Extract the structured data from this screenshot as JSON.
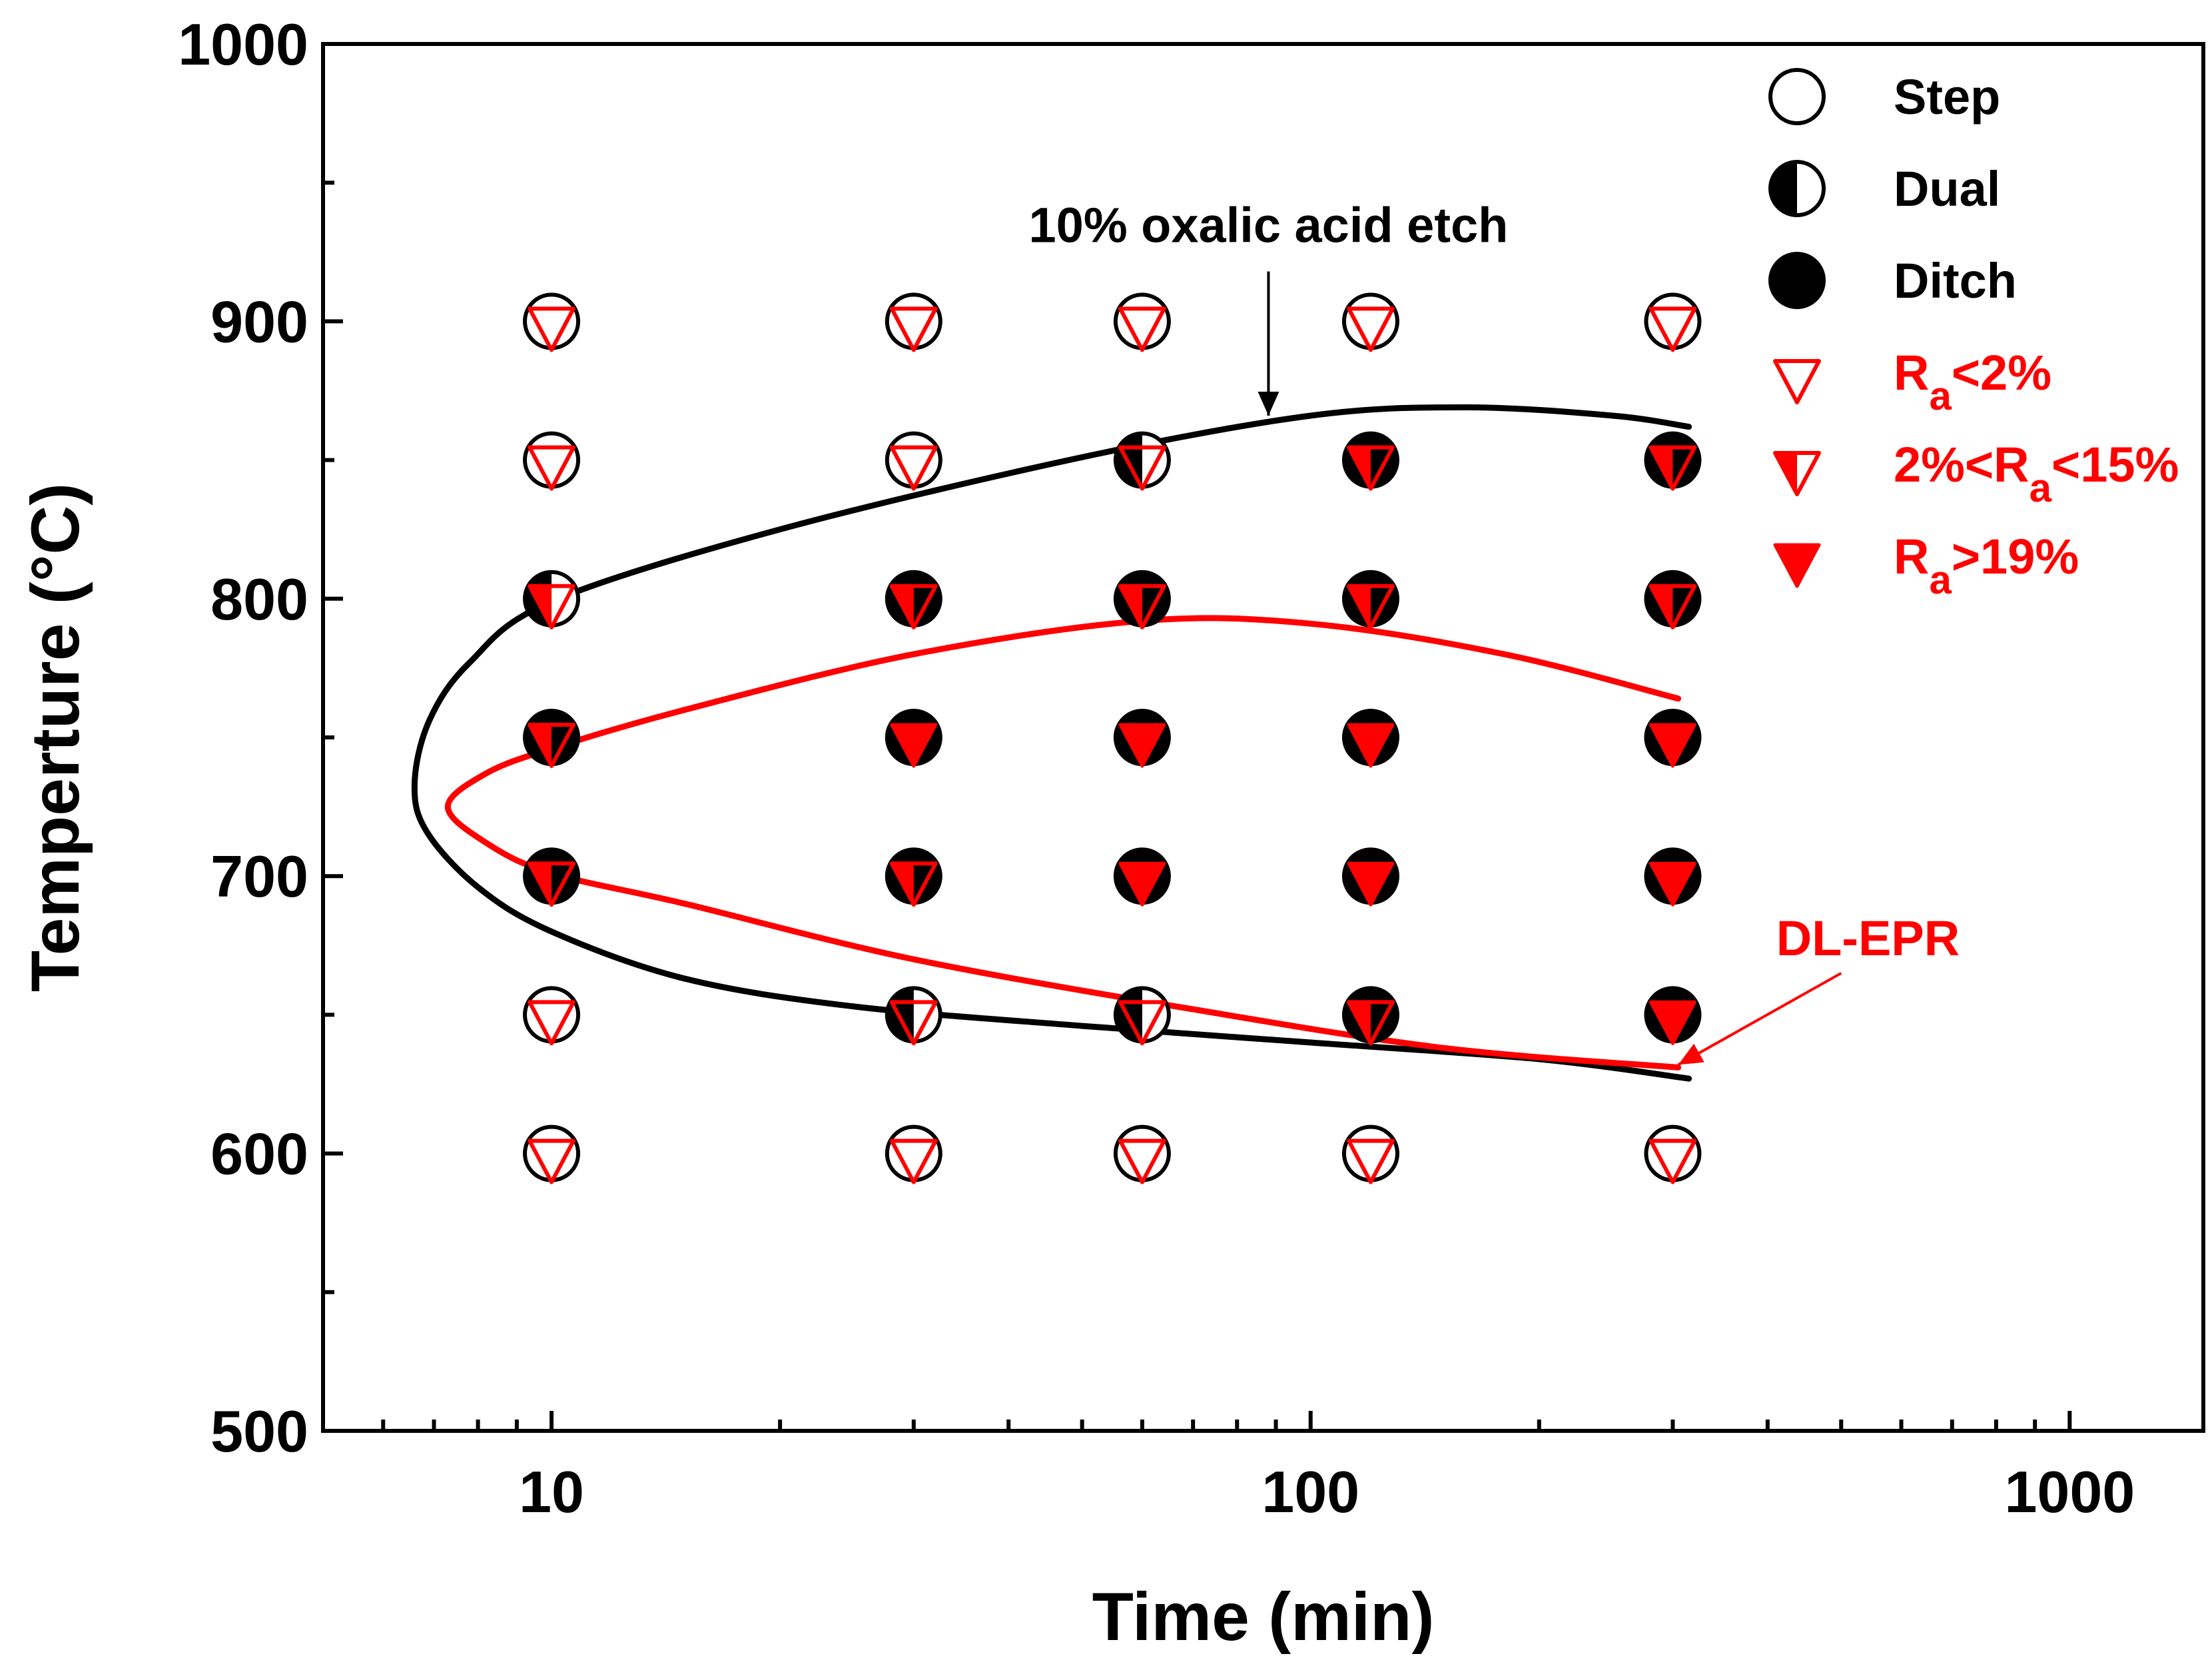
{
  "chart_data": {
    "type": "scatter",
    "xlabel": "Time (min)",
    "ylabel": "Temperture (°C)",
    "xscale": "log",
    "xlim": [
      5,
      1500
    ],
    "ylim": [
      500,
      1000
    ],
    "x_ticks": [
      {
        "value": 10,
        "label": "10"
      },
      {
        "value": 100,
        "label": "100"
      },
      {
        "value": 1000,
        "label": "1000"
      }
    ],
    "y_ticks": [
      {
        "value": 500,
        "label": "500"
      },
      {
        "value": 600,
        "label": "600"
      },
      {
        "value": 700,
        "label": "700"
      },
      {
        "value": 800,
        "label": "800"
      },
      {
        "value": 900,
        "label": "900"
      },
      {
        "value": 1000,
        "label": "1000"
      }
    ],
    "colors": {
      "axis": "#000000",
      "etch": "#000000",
      "epr": "#ff0000"
    },
    "legend": {
      "placement": "top-right",
      "entries": [
        {
          "marker": "circle-open",
          "color": "#000000",
          "text": "Step",
          "sub": "",
          "suffix": ""
        },
        {
          "marker": "circle-half",
          "color": "#000000",
          "text": "Dual",
          "sub": "",
          "suffix": ""
        },
        {
          "marker": "circle-filled",
          "color": "#000000",
          "text": "Ditch",
          "sub": "",
          "suffix": ""
        },
        {
          "marker": "triangle-open",
          "color": "#ff0000",
          "text": "R",
          "sub": "a",
          "suffix": "<2%"
        },
        {
          "marker": "triangle-half",
          "color": "#ff0000",
          "text": "2%<R",
          "sub": "a",
          "suffix": "<15%"
        },
        {
          "marker": "triangle-filled",
          "color": "#ff0000",
          "text": "R",
          "sub": "a",
          "suffix": ">19%"
        }
      ]
    },
    "points": [
      {
        "x": 10,
        "y": 900,
        "etch": "step",
        "epr": "low"
      },
      {
        "x": 10,
        "y": 850,
        "etch": "step",
        "epr": "low"
      },
      {
        "x": 10,
        "y": 800,
        "etch": "dual",
        "epr": "mid"
      },
      {
        "x": 10,
        "y": 750,
        "etch": "ditch",
        "epr": "mid"
      },
      {
        "x": 10,
        "y": 700,
        "etch": "ditch",
        "epr": "mid"
      },
      {
        "x": 10,
        "y": 650,
        "etch": "step",
        "epr": "low"
      },
      {
        "x": 10,
        "y": 600,
        "etch": "step",
        "epr": "low"
      },
      {
        "x": 30,
        "y": 900,
        "etch": "step",
        "epr": "low"
      },
      {
        "x": 30,
        "y": 850,
        "etch": "step",
        "epr": "low"
      },
      {
        "x": 30,
        "y": 800,
        "etch": "ditch",
        "epr": "mid"
      },
      {
        "x": 30,
        "y": 750,
        "etch": "ditch",
        "epr": "high"
      },
      {
        "x": 30,
        "y": 700,
        "etch": "ditch",
        "epr": "mid"
      },
      {
        "x": 30,
        "y": 650,
        "etch": "dual",
        "epr": "low"
      },
      {
        "x": 30,
        "y": 600,
        "etch": "step",
        "epr": "low"
      },
      {
        "x": 60,
        "y": 900,
        "etch": "step",
        "epr": "low"
      },
      {
        "x": 60,
        "y": 850,
        "etch": "dual",
        "epr": "low"
      },
      {
        "x": 60,
        "y": 800,
        "etch": "ditch",
        "epr": "mid"
      },
      {
        "x": 60,
        "y": 750,
        "etch": "ditch",
        "epr": "high"
      },
      {
        "x": 60,
        "y": 700,
        "etch": "ditch",
        "epr": "high"
      },
      {
        "x": 60,
        "y": 650,
        "etch": "dual",
        "epr": "low"
      },
      {
        "x": 60,
        "y": 600,
        "etch": "step",
        "epr": "low"
      },
      {
        "x": 120,
        "y": 900,
        "etch": "step",
        "epr": "low"
      },
      {
        "x": 120,
        "y": 850,
        "etch": "ditch",
        "epr": "mid"
      },
      {
        "x": 120,
        "y": 800,
        "etch": "ditch",
        "epr": "mid"
      },
      {
        "x": 120,
        "y": 750,
        "etch": "ditch",
        "epr": "high"
      },
      {
        "x": 120,
        "y": 700,
        "etch": "ditch",
        "epr": "high"
      },
      {
        "x": 120,
        "y": 650,
        "etch": "ditch",
        "epr": "mid"
      },
      {
        "x": 120,
        "y": 600,
        "etch": "step",
        "epr": "low"
      },
      {
        "x": 300,
        "y": 900,
        "etch": "step",
        "epr": "low"
      },
      {
        "x": 300,
        "y": 850,
        "etch": "ditch",
        "epr": "mid"
      },
      {
        "x": 300,
        "y": 800,
        "etch": "ditch",
        "epr": "mid"
      },
      {
        "x": 300,
        "y": 750,
        "etch": "ditch",
        "epr": "high"
      },
      {
        "x": 300,
        "y": 700,
        "etch": "ditch",
        "epr": "high"
      },
      {
        "x": 300,
        "y": 650,
        "etch": "ditch",
        "epr": "high"
      },
      {
        "x": 300,
        "y": 600,
        "etch": "step",
        "epr": "low"
      }
    ],
    "curves": [
      {
        "color": "#000000",
        "points": [
          [
            315,
            627
          ],
          [
            200,
            634
          ],
          [
            100,
            640
          ],
          [
            50,
            646
          ],
          [
            25,
            653
          ],
          [
            15,
            663
          ],
          [
            10,
            680
          ],
          [
            8,
            696
          ],
          [
            6.85,
            716
          ],
          [
            6.6,
            733
          ],
          [
            6.9,
            756
          ],
          [
            7.8,
            777
          ],
          [
            10,
            799
          ],
          [
            20,
            825
          ],
          [
            50,
            851
          ],
          [
            100,
            866
          ],
          [
            160,
            869
          ],
          [
            250,
            866
          ],
          [
            315,
            862
          ]
        ]
      },
      {
        "color": "#ff0000",
        "points": [
          [
            305,
            631
          ],
          [
            150,
            638
          ],
          [
            70,
            652
          ],
          [
            30,
            670
          ],
          [
            15,
            690
          ],
          [
            10,
            701
          ],
          [
            8.2,
            712
          ],
          [
            7.3,
            725
          ],
          [
            8.2,
            737
          ],
          [
            10,
            746
          ],
          [
            15,
            760
          ],
          [
            30,
            780
          ],
          [
            60,
            792
          ],
          [
            100,
            791
          ],
          [
            180,
            780
          ],
          [
            305,
            764
          ]
        ]
      }
    ],
    "annotations": [
      {
        "text": "10% oxalic acid etch",
        "text_x": 88,
        "text_y": 935,
        "arrow_from": [
          88,
          918
        ],
        "arrow_to": [
          88,
          866
        ],
        "color": "#000000"
      },
      {
        "text": "DL-EPR",
        "text_x": 600,
        "text_y": 678,
        "arrow_from": [
          500,
          665
        ],
        "arrow_to": [
          305,
          632
        ],
        "color": "#ff0000"
      }
    ]
  }
}
